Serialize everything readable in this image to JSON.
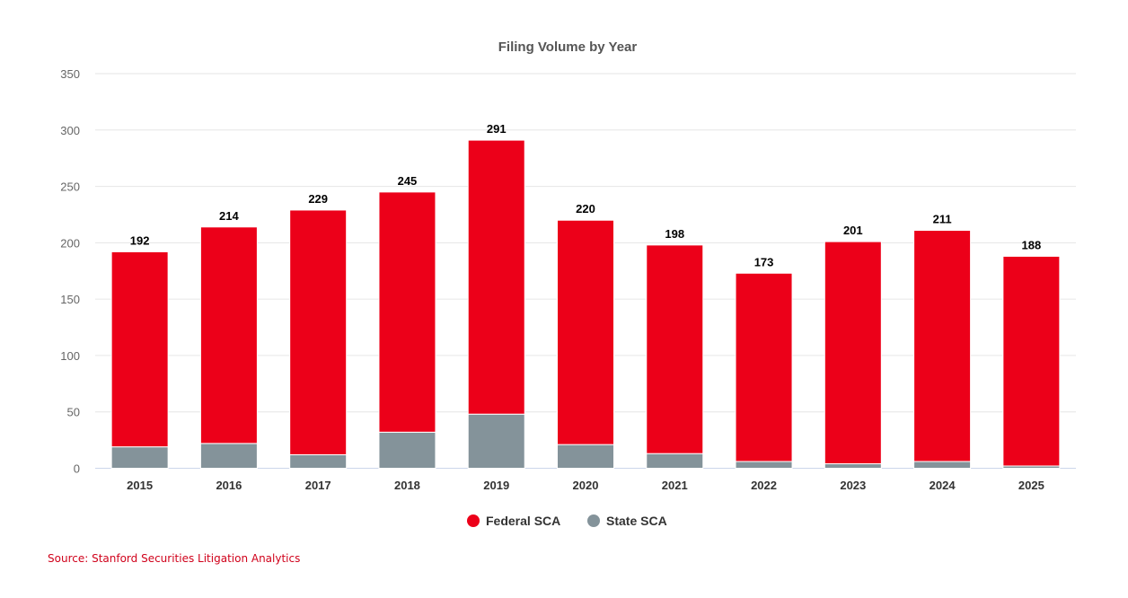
{
  "chart_data": {
    "type": "bar",
    "stacked": true,
    "title": "Filing Volume by Year",
    "xlabel": "",
    "ylabel": "",
    "ylim": [
      0,
      350
    ],
    "yticks": [
      0,
      50,
      100,
      150,
      200,
      250,
      300,
      350
    ],
    "grid": true,
    "legend_position": "bottom-center",
    "categories": [
      "2015",
      "2016",
      "2017",
      "2018",
      "2019",
      "2020",
      "2021",
      "2022",
      "2023",
      "2024",
      "2025"
    ],
    "series": [
      {
        "name": "State SCA",
        "color": "#84939a",
        "values": [
          19,
          22,
          12,
          32,
          48,
          21,
          13,
          6,
          4,
          6,
          2
        ]
      },
      {
        "name": "Federal SCA",
        "color": "#ec0019",
        "values": [
          173,
          192,
          217,
          213,
          243,
          199,
          185,
          167,
          197,
          205,
          186
        ]
      }
    ],
    "totals": [
      192,
      214,
      229,
      245,
      291,
      220,
      198,
      173,
      201,
      211,
      188
    ],
    "legend_order": [
      "Federal SCA",
      "State SCA"
    ]
  },
  "source": "Source: Stanford Securities Litigation Analytics"
}
